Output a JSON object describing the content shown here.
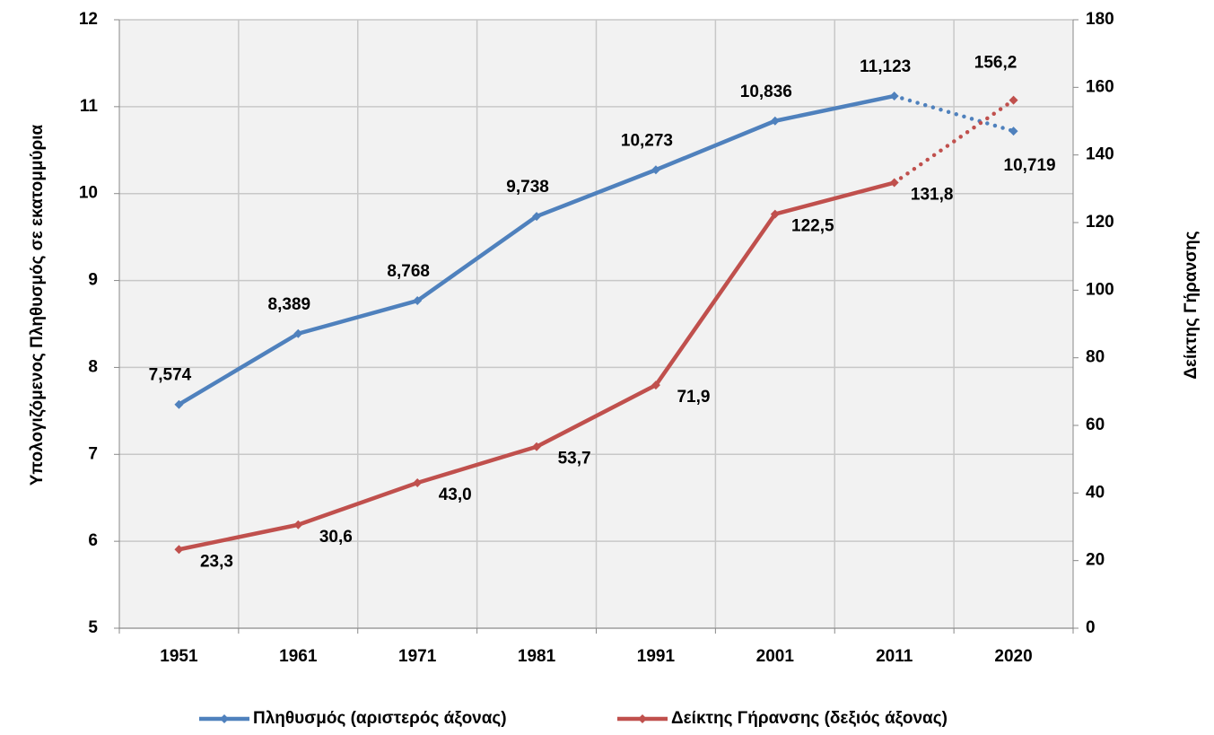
{
  "chart_data": {
    "type": "line",
    "categories": [
      "1951",
      "1961",
      "1971",
      "1981",
      "1991",
      "2001",
      "2011",
      "2020"
    ],
    "series": [
      {
        "name": "Πληθυσμός (αριστερός άξονας)",
        "color": "#4f81bd",
        "values": [
          7.574,
          8.389,
          8.768,
          9.738,
          10.273,
          10.836,
          11.123,
          10.719
        ],
        "value_labels": [
          "7,574",
          "8,389",
          "8,768",
          "9,738",
          "10,273",
          "10,836",
          "11,123",
          "10,719"
        ],
        "last_segment_style": "dotted"
      },
      {
        "name": "Δείκτης Γήρανσης (δεξιός άξονας)",
        "color": "#c0504d",
        "axis": "y2",
        "values": [
          23.3,
          30.6,
          43.0,
          53.7,
          71.9,
          122.5,
          131.8,
          156.2
        ],
        "value_labels": [
          "23,3",
          "30,6",
          "43,0",
          "53,7",
          "71,9",
          "122,5",
          "131,8",
          "156,2"
        ],
        "last_segment_style": "dotted"
      }
    ],
    "ylabel": "Υπολογιζόμενος Πληθυσμός σε εκατομμύρια",
    "y2label": "Δείκτης Γήρανσης",
    "ylim": [
      5,
      12
    ],
    "yticks": [
      5,
      6,
      7,
      8,
      9,
      10,
      11,
      12
    ],
    "y2lim": [
      0,
      180
    ],
    "y2ticks": [
      0,
      20,
      40,
      60,
      80,
      100,
      120,
      140,
      160,
      180
    ],
    "grid": true,
    "legend": "bottom"
  }
}
